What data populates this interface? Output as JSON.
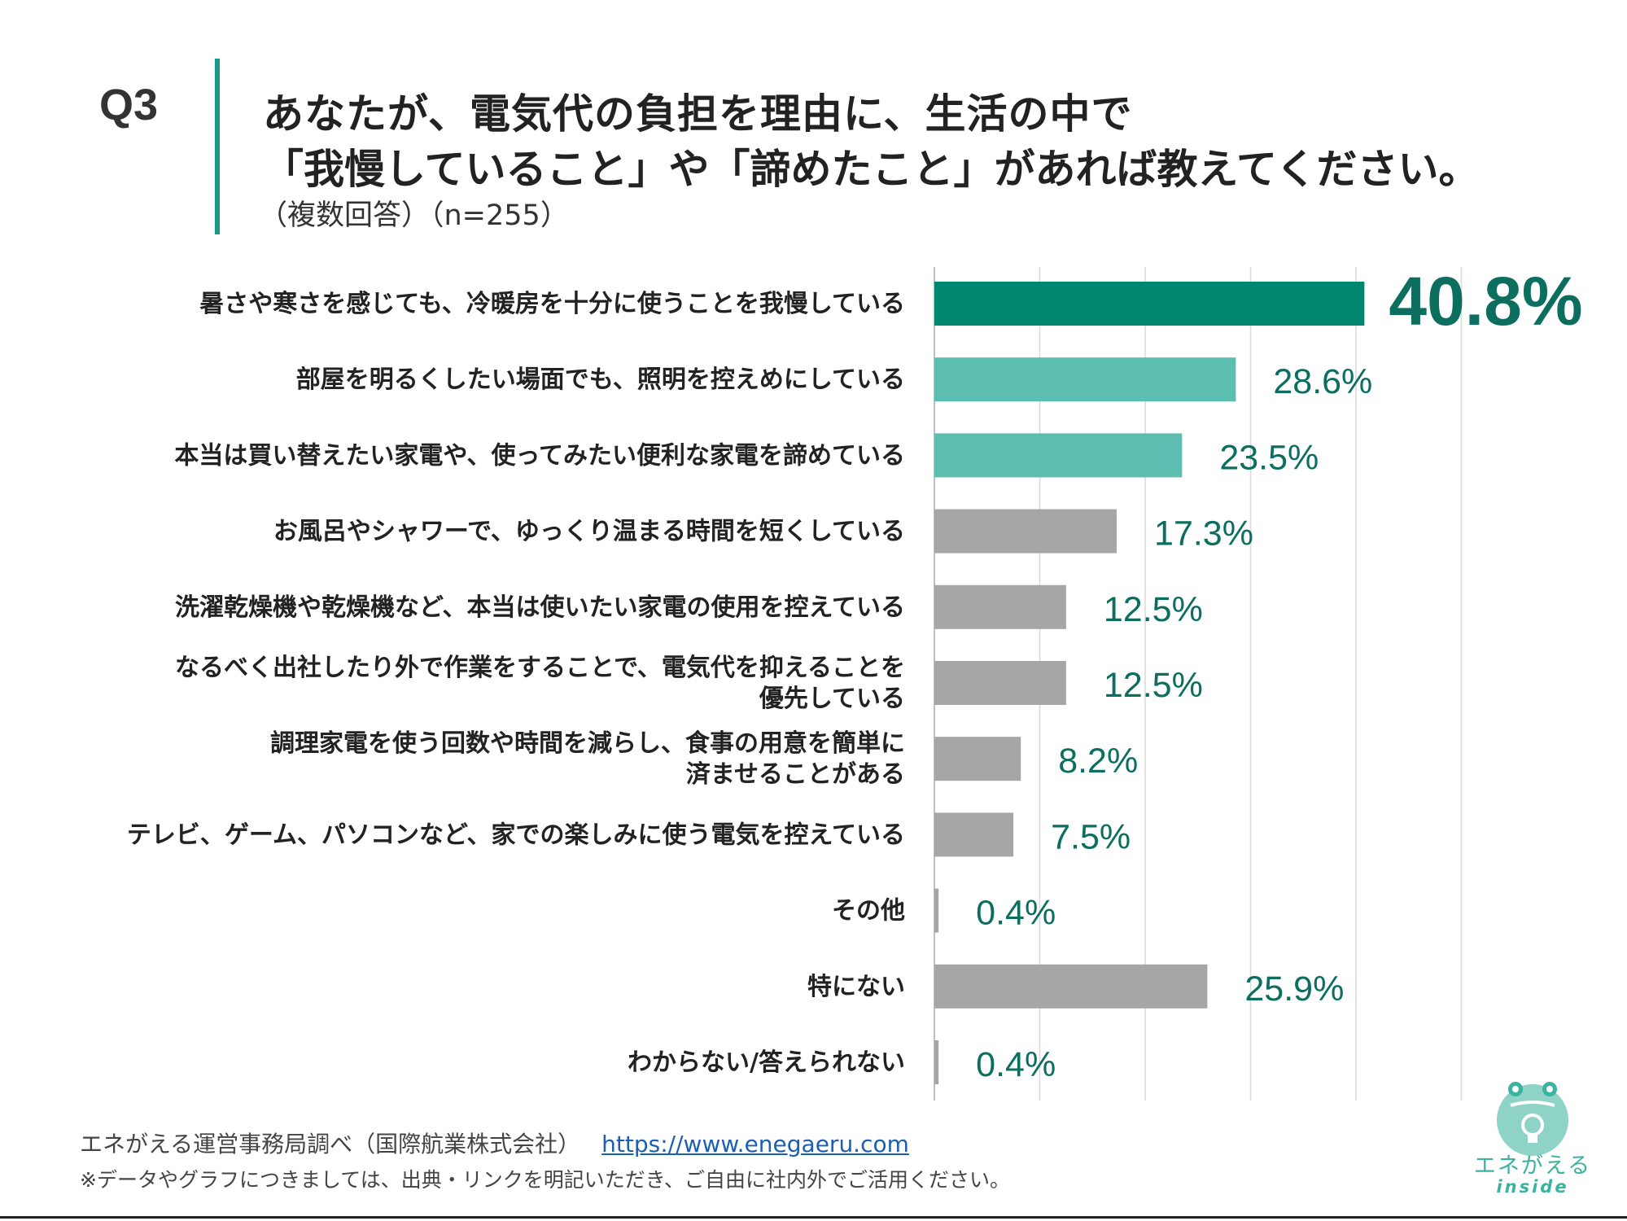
{
  "question": {
    "number": "Q3",
    "title_line1": "あなたが、電気代の負担を理由に、生活の中で",
    "title_line2": "「我慢していること」や「諦めたこと」があれば教えてください。",
    "subtitle": "（複数回答）（n=255）"
  },
  "chart_data": {
    "type": "bar",
    "orientation": "horizontal",
    "categories": [
      [
        "暑さや寒さを感じても、冷暖房を十分に使うことを我慢している"
      ],
      [
        "部屋を明るくしたい場面でも、照明を控えめにしている"
      ],
      [
        "本当は買い替えたい家電や、使ってみたい便利な家電を諦めている"
      ],
      [
        "お風呂やシャワーで、ゆっくり温まる時間を短くしている"
      ],
      [
        "洗濯乾燥機や乾燥機など、本当は使いたい家電の使用を控えている"
      ],
      [
        "なるべく出社したり外で作業をすることで、電気代を抑えることを",
        "優先している"
      ],
      [
        "調理家電を使う回数や時間を減らし、食事の用意を簡単に",
        "済ませることがある"
      ],
      [
        "テレビ、ゲーム、パソコンなど、家での楽しみに使う電気を控えている"
      ],
      [
        "その他"
      ],
      [
        "特にない"
      ],
      [
        "わからない/答えられない"
      ]
    ],
    "values": [
      40.8,
      28.6,
      23.5,
      17.3,
      12.5,
      12.5,
      8.2,
      7.5,
      0.4,
      25.9,
      0.4
    ],
    "value_labels": [
      "40.8%",
      "28.6%",
      "23.5%",
      "17.3%",
      "12.5%",
      "12.5%",
      "8.2%",
      "7.5%",
      "0.4%",
      "25.9%",
      "0.4%"
    ],
    "bar_colors": [
      "#00876f",
      "#5cbdb1",
      "#5cbdb1",
      "#a6a6a6",
      "#a6a6a6",
      "#a6a6a6",
      "#a6a6a6",
      "#a6a6a6",
      "#a6a6a6",
      "#a6a6a6",
      "#a6a6a6"
    ],
    "highlight_index": 0,
    "xlim": [
      0,
      50
    ],
    "grid": true,
    "grid_step": 10,
    "label_color": "#0b6e5f"
  },
  "footer": {
    "source": "エネがえる運営事務局調べ（国際航業株式会社）",
    "link": "https://www.enegaeru.com",
    "note": "※データやグラフにつきましては、出典・リンクを明記いただき、ご自由に社内外でご活用ください。"
  },
  "logo": {
    "name": "エネがえる",
    "sub": "inside"
  }
}
